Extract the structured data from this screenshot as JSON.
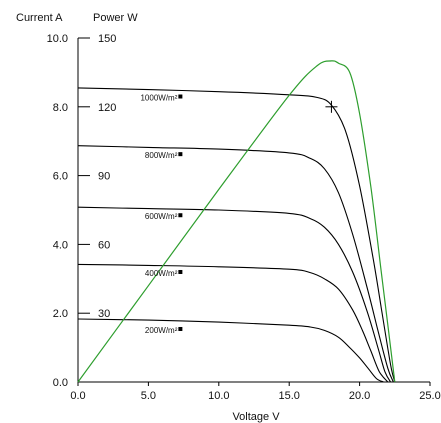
{
  "chart_data": {
    "type": "line",
    "title": "",
    "xlabel": "Voltage V",
    "ylabel": "Current A",
    "ylabel2": "Power W",
    "xlim": [
      0,
      25
    ],
    "ylim": [
      0,
      10
    ],
    "y2lim": [
      0,
      150
    ],
    "grid": false,
    "legend": "inline labels",
    "x_ticks": [
      "0.0",
      "5.0",
      "10.0",
      "15.0",
      "20.0",
      "25.0"
    ],
    "y_ticks": [
      "0.0",
      "2.0",
      "4.0",
      "6.0",
      "8.0",
      "10.0"
    ],
    "y2_ticks": [
      "30",
      "60",
      "90",
      "120",
      "150"
    ],
    "series": [
      {
        "name": "1000W/m²",
        "color": "#000000",
        "x": [
          0,
          5,
          10,
          15,
          17,
          18,
          19,
          20,
          21,
          21.6,
          22.2,
          22.5
        ],
        "y": [
          8.55,
          8.5,
          8.44,
          8.35,
          8.27,
          8.05,
          7.3,
          5.7,
          3.5,
          2.0,
          0.5,
          0
        ]
      },
      {
        "name": "800W/m²",
        "color": "#000000",
        "x": [
          0,
          5,
          10,
          15,
          16.5,
          17.5,
          18.5,
          19.5,
          20.5,
          21.3,
          22.0,
          22.4
        ],
        "y": [
          6.87,
          6.82,
          6.77,
          6.66,
          6.5,
          6.2,
          5.5,
          4.3,
          2.8,
          1.5,
          0.4,
          0
        ]
      },
      {
        "name": "600W/m²",
        "color": "#000000",
        "x": [
          0,
          5,
          10,
          15,
          16.5,
          17.5,
          18.5,
          19.5,
          20.5,
          21.3,
          21.8,
          22.2
        ],
        "y": [
          5.08,
          5.04,
          5.0,
          4.9,
          4.75,
          4.5,
          4.0,
          3.2,
          2.1,
          1.0,
          0.3,
          0
        ]
      },
      {
        "name": "400W/m²",
        "color": "#000000",
        "x": [
          0,
          5,
          10,
          15,
          16.5,
          17.5,
          18.5,
          19.5,
          20.2,
          20.8,
          21.4,
          22.0
        ],
        "y": [
          3.42,
          3.39,
          3.35,
          3.28,
          3.18,
          3.0,
          2.7,
          2.1,
          1.5,
          0.9,
          0.3,
          0
        ]
      },
      {
        "name": "200W/m²",
        "color": "#000000",
        "x": [
          0,
          5,
          10,
          15,
          16.5,
          17.5,
          18.5,
          19.3,
          20.0,
          20.6,
          21.2,
          21.7
        ],
        "y": [
          1.83,
          1.8,
          1.74,
          1.65,
          1.6,
          1.5,
          1.3,
          1.0,
          0.7,
          0.4,
          0.1,
          0
        ]
      },
      {
        "name": "",
        "axis": "power",
        "color": "#2e9e2e",
        "x": [
          0,
          5,
          10,
          15,
          17,
          18,
          18.5,
          19.3,
          20,
          20.8,
          21.5,
          22.1,
          22.5
        ],
        "y": [
          0,
          42,
          84,
          125,
          138,
          140,
          139,
          135,
          117,
          85,
          50,
          20,
          0
        ]
      }
    ],
    "mpp_marker": {
      "x": 18,
      "y": 8.0,
      "symbol": "+"
    }
  }
}
